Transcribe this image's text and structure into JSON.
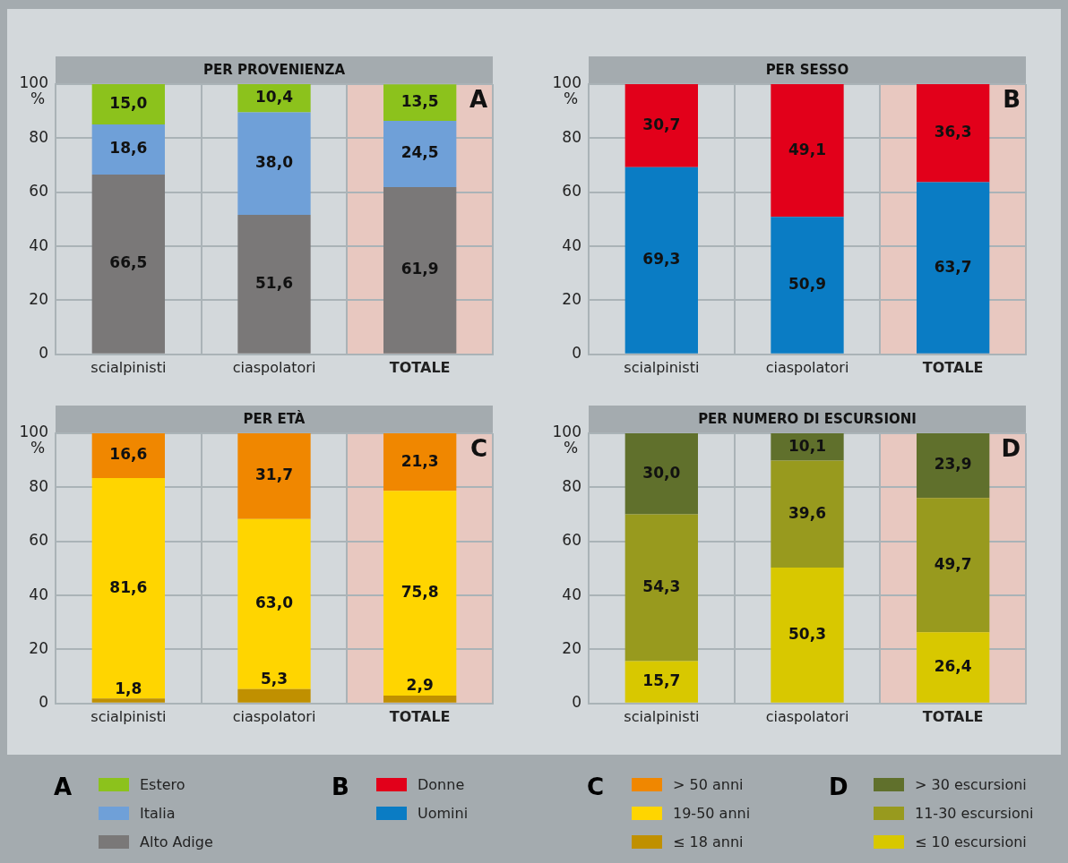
{
  "chart_data": [
    {
      "type": "bar",
      "stacked": true,
      "title": "PER PROVENIENZA",
      "ylabel": "%",
      "legend_title": "A",
      "annotations": [
        "A"
      ],
      "legend": "bottom",
      "grid": true,
      "categories": [
        "scialpinisti",
        "ciaspolatori",
        "TOTALE"
      ],
      "ylim": [
        0,
        100
      ],
      "yticks": [
        0,
        20,
        40,
        60,
        80,
        100
      ],
      "bands": [
        {
          "axis": "x",
          "from": "TOTALE",
          "to": "TOTALE",
          "color": "#e8c8c0"
        }
      ],
      "series": [
        {
          "name": "Alto Adige",
          "color": "#7a7878",
          "values": [
            66.5,
            51.6,
            61.9
          ],
          "value_labels": [
            "66,5",
            "51,6",
            "61,9"
          ]
        },
        {
          "name": "Italia",
          "color": "#6fa0d8",
          "values": [
            18.6,
            38.0,
            24.5
          ],
          "value_labels": [
            "18,6",
            "38,0",
            "24,5"
          ]
        },
        {
          "name": "Estero",
          "color": "#8cc21c",
          "values": [
            15.0,
            10.4,
            13.5
          ],
          "value_labels": [
            "15,0",
            "10,4",
            "13,5"
          ]
        }
      ]
    },
    {
      "type": "bar",
      "stacked": true,
      "title": "PER SESSO",
      "ylabel": "%",
      "legend_title": "B",
      "annotations": [
        "B"
      ],
      "legend": "bottom",
      "grid": true,
      "categories": [
        "scialpinisti",
        "ciaspolatori",
        "TOTALE"
      ],
      "ylim": [
        0,
        100
      ],
      "yticks": [
        0,
        20,
        40,
        60,
        80,
        100
      ],
      "bands": [
        {
          "axis": "x",
          "from": "TOTALE",
          "to": "TOTALE",
          "color": "#e8c8c0"
        }
      ],
      "series": [
        {
          "name": "Uomini",
          "color": "#0a7cc4",
          "values": [
            69.3,
            50.9,
            63.7
          ],
          "value_labels": [
            "69,3",
            "50,9",
            "63,7"
          ]
        },
        {
          "name": "Donne",
          "color": "#e2001a",
          "values": [
            30.7,
            49.1,
            36.3
          ],
          "value_labels": [
            "30,7",
            "49,1",
            "36,3"
          ]
        }
      ]
    },
    {
      "type": "bar",
      "stacked": true,
      "title": "PER ETÀ",
      "ylabel": "%",
      "legend_title": "C",
      "annotations": [
        "C"
      ],
      "legend": "bottom",
      "grid": true,
      "categories": [
        "scialpinisti",
        "ciaspolatori",
        "TOTALE"
      ],
      "ylim": [
        0,
        100
      ],
      "yticks": [
        0,
        20,
        40,
        60,
        80,
        100
      ],
      "bands": [
        {
          "axis": "x",
          "from": "TOTALE",
          "to": "TOTALE",
          "color": "#e8c8c0"
        }
      ],
      "series": [
        {
          "name": "≤ 18 anni",
          "color": "#c09000",
          "values": [
            1.8,
            5.3,
            2.9
          ],
          "value_labels": [
            "1,8",
            "5,3",
            "2,9"
          ]
        },
        {
          "name": "19-50 anni",
          "color": "#ffd500",
          "values": [
            81.6,
            63.0,
            75.8
          ],
          "value_labels": [
            "81,6",
            "63,0",
            "75,8"
          ]
        },
        {
          "name": "> 50 anni",
          "color": "#f08700",
          "values": [
            16.6,
            31.7,
            21.3
          ],
          "value_labels": [
            "16,6",
            "31,7",
            "21,3"
          ]
        }
      ]
    },
    {
      "type": "bar",
      "stacked": true,
      "title": "PER NUMERO DI ESCURSIONI",
      "ylabel": "%",
      "legend_title": "D",
      "annotations": [
        "D"
      ],
      "legend": "bottom",
      "grid": true,
      "categories": [
        "scialpinisti",
        "ciaspolatori",
        "TOTALE"
      ],
      "ylim": [
        0,
        100
      ],
      "yticks": [
        0,
        20,
        40,
        60,
        80,
        100
      ],
      "bands": [
        {
          "axis": "x",
          "from": "TOTALE",
          "to": "TOTALE",
          "color": "#e8c8c0"
        }
      ],
      "series": [
        {
          "name": "≤ 10 escursioni",
          "color": "#d8c800",
          "values": [
            15.7,
            50.3,
            26.4
          ],
          "value_labels": [
            "15,7",
            "50,3",
            "26,4"
          ]
        },
        {
          "name": "11-30 escursioni",
          "color": "#989a1e",
          "values": [
            54.3,
            39.6,
            49.7
          ],
          "value_labels": [
            "54,3",
            "39,6",
            "49,7"
          ]
        },
        {
          "name": "> 30 escursioni",
          "color": "#60702c",
          "values": [
            30.0,
            10.1,
            23.9
          ],
          "value_labels": [
            "30,0",
            "10,1",
            "23,9"
          ]
        }
      ]
    }
  ]
}
